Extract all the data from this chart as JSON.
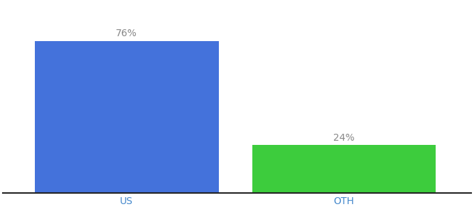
{
  "categories": [
    "US",
    "OTH"
  ],
  "values": [
    76,
    24
  ],
  "bar_colors": [
    "#4472db",
    "#3dcc3d"
  ],
  "label_texts": [
    "76%",
    "24%"
  ],
  "label_color": "#888888",
  "label_fontsize": 10,
  "tick_fontsize": 10,
  "tick_color": "#4488cc",
  "background_color": "#ffffff",
  "ylim": [
    0,
    95
  ],
  "bar_width": 0.55,
  "spine_color": "#222222",
  "x_positions": [
    0.35,
    1.0
  ]
}
